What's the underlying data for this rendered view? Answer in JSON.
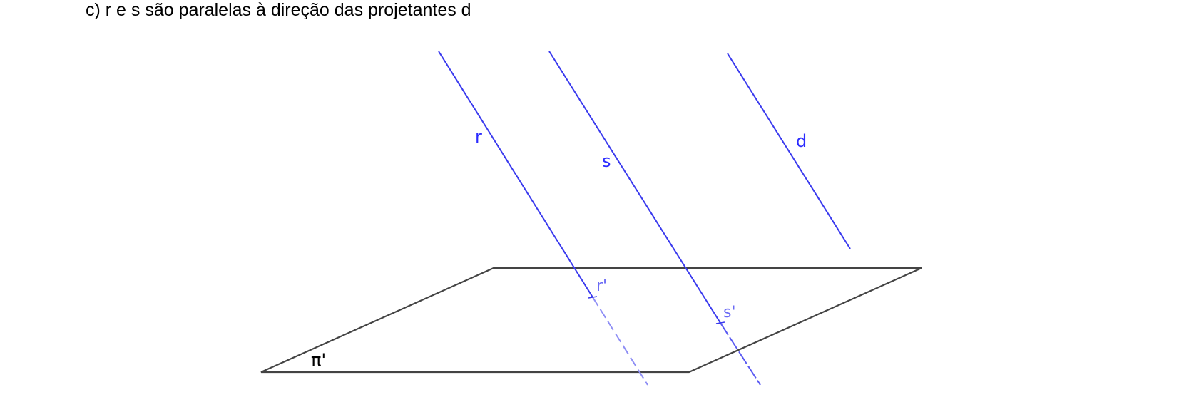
{
  "caption": "c) r e s são paralelas à direção das projetantes d",
  "labels": {
    "r": "r",
    "s": "s",
    "d": "d",
    "r_proj": "r'",
    "s_proj": "s'",
    "plane": "π'"
  },
  "colors": {
    "line_blue": "#3a3aee",
    "label_blue": "#2b2bff",
    "proj_label_blue": "#6a6af5",
    "plane_stroke": "#444444",
    "text": "#000000"
  }
}
